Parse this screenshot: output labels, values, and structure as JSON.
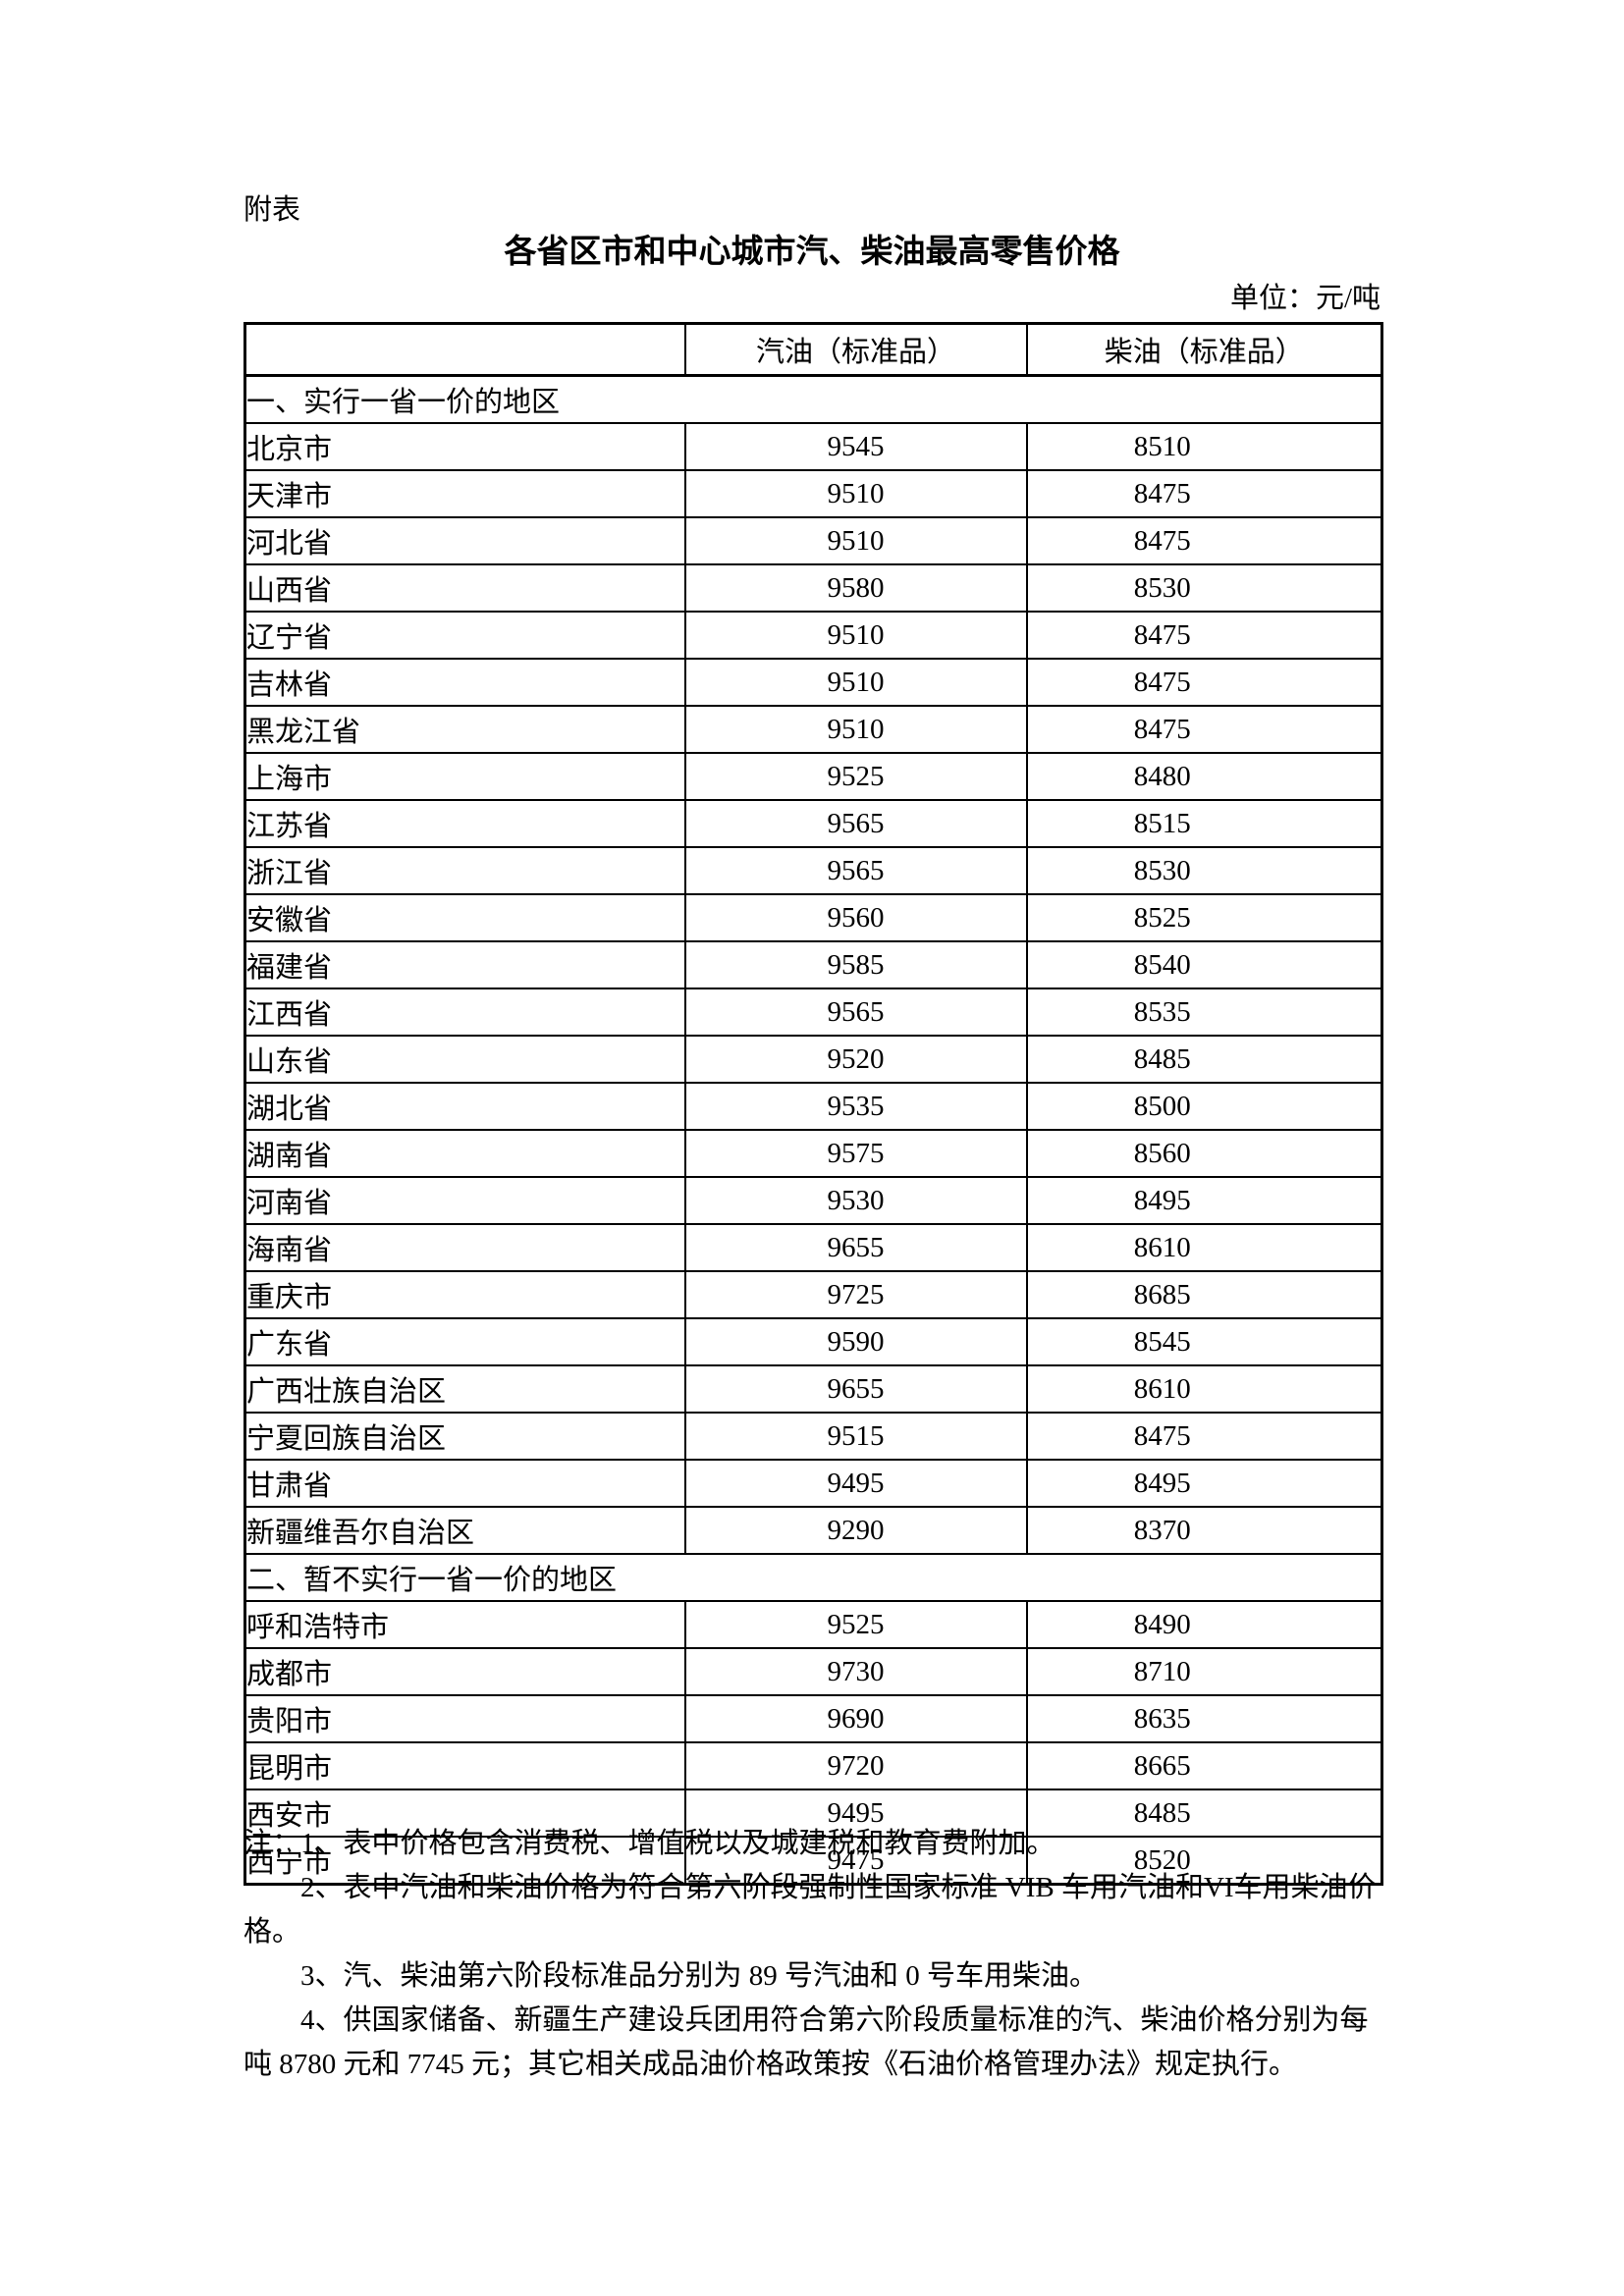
{
  "page": {
    "label": "附表",
    "title": "各省区市和中心城市汽、柴油最高零售价格",
    "unit": "单位：元/吨"
  },
  "table": {
    "columns": [
      "汽油（标准品）",
      "柴油（标准品）"
    ],
    "sections": [
      {
        "heading": "一、实行一省一价的地区",
        "rows": [
          {
            "region": "北京市",
            "gasoline": "9545",
            "diesel": "8510"
          },
          {
            "region": "天津市",
            "gasoline": "9510",
            "diesel": "8475"
          },
          {
            "region": "河北省",
            "gasoline": "9510",
            "diesel": "8475"
          },
          {
            "region": "山西省",
            "gasoline": "9580",
            "diesel": "8530"
          },
          {
            "region": "辽宁省",
            "gasoline": "9510",
            "diesel": "8475"
          },
          {
            "region": "吉林省",
            "gasoline": "9510",
            "diesel": "8475"
          },
          {
            "region": "黑龙江省",
            "gasoline": "9510",
            "diesel": "8475"
          },
          {
            "region": "上海市",
            "gasoline": "9525",
            "diesel": "8480"
          },
          {
            "region": "江苏省",
            "gasoline": "9565",
            "diesel": "8515"
          },
          {
            "region": "浙江省",
            "gasoline": "9565",
            "diesel": "8530"
          },
          {
            "region": "安徽省",
            "gasoline": "9560",
            "diesel": "8525"
          },
          {
            "region": "福建省",
            "gasoline": "9585",
            "diesel": "8540"
          },
          {
            "region": "江西省",
            "gasoline": "9565",
            "diesel": "8535"
          },
          {
            "region": "山东省",
            "gasoline": "9520",
            "diesel": "8485"
          },
          {
            "region": "湖北省",
            "gasoline": "9535",
            "diesel": "8500"
          },
          {
            "region": "湖南省",
            "gasoline": "9575",
            "diesel": "8560"
          },
          {
            "region": "河南省",
            "gasoline": "9530",
            "diesel": "8495"
          },
          {
            "region": "海南省",
            "gasoline": "9655",
            "diesel": "8610"
          },
          {
            "region": "重庆市",
            "gasoline": "9725",
            "diesel": "8685"
          },
          {
            "region": "广东省",
            "gasoline": "9590",
            "diesel": "8545"
          },
          {
            "region": "广西壮族自治区",
            "gasoline": "9655",
            "diesel": "8610"
          },
          {
            "region": "宁夏回族自治区",
            "gasoline": "9515",
            "diesel": "8475"
          },
          {
            "region": "甘肃省",
            "gasoline": "9495",
            "diesel": "8495"
          },
          {
            "region": "新疆维吾尔自治区",
            "gasoline": "9290",
            "diesel": "8370"
          }
        ]
      },
      {
        "heading": "二、暂不实行一省一价的地区",
        "rows": [
          {
            "region": "呼和浩特市",
            "gasoline": "9525",
            "diesel": "8490"
          },
          {
            "region": "成都市",
            "gasoline": "9730",
            "diesel": "8710"
          },
          {
            "region": "贵阳市",
            "gasoline": "9690",
            "diesel": "8635"
          },
          {
            "region": "昆明市",
            "gasoline": "9720",
            "diesel": "8665"
          },
          {
            "region": "西安市",
            "gasoline": "9495",
            "diesel": "8485"
          },
          {
            "region": "西宁市",
            "gasoline": "9475",
            "diesel": "8520"
          }
        ]
      }
    ]
  },
  "notes": [
    {
      "text": "注：1、表中价格包含消费税、增值税以及城建税和教育费附加。",
      "indent": false
    },
    {
      "text": "2、表中汽油和柴油价格为符合第六阶段强制性国家标准 VIB 车用汽油和VI车用柴油价",
      "indent": true
    },
    {
      "text": "格。",
      "indent": false
    },
    {
      "text": "3、汽、柴油第六阶段标准品分别为 89 号汽油和 0 号车用柴油。",
      "indent": true
    },
    {
      "text": "4、供国家储备、新疆生产建设兵团用符合第六阶段质量标准的汽、柴油价格分别为每",
      "indent": true
    },
    {
      "text": "吨 8780 元和 7745 元；其它相关成品油价格政策按《石油价格管理办法》规定执行。",
      "indent": false
    }
  ]
}
